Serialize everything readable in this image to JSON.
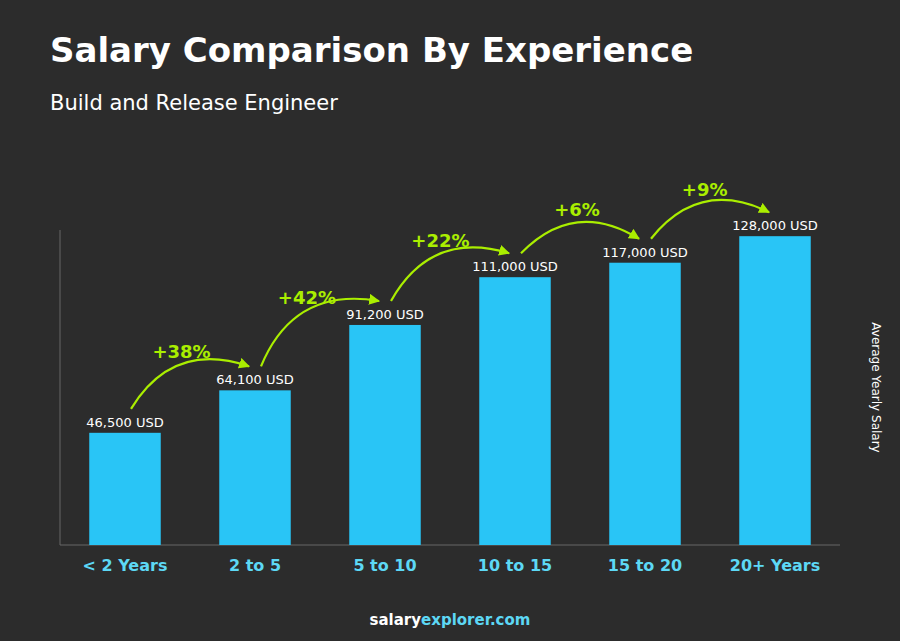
{
  "chart_data": {
    "type": "bar",
    "title": "Salary Comparison By Experience",
    "subtitle": "Build and Release Engineer",
    "y_label": "Average Yearly Salary",
    "categories": [
      "< 2 Years",
      "2 to 5",
      "5 to 10",
      "10 to 15",
      "15 to 20",
      "20+ Years"
    ],
    "values": [
      46500,
      64100,
      91200,
      111000,
      117000,
      128000
    ],
    "value_labels": [
      "46,500 USD",
      "64,100 USD",
      "91,200 USD",
      "111,000 USD",
      "117,000 USD",
      "128,000 USD"
    ],
    "data_labels": true,
    "annotations": [
      "+38%",
      "+42%",
      "+22%",
      "+6%",
      "+9%"
    ],
    "footer": [
      "salary",
      "explorer.com"
    ],
    "color": "#29C5F6",
    "ylim": [
      0,
      130560
    ],
    "tick_labels": "x",
    "grid": false
  }
}
